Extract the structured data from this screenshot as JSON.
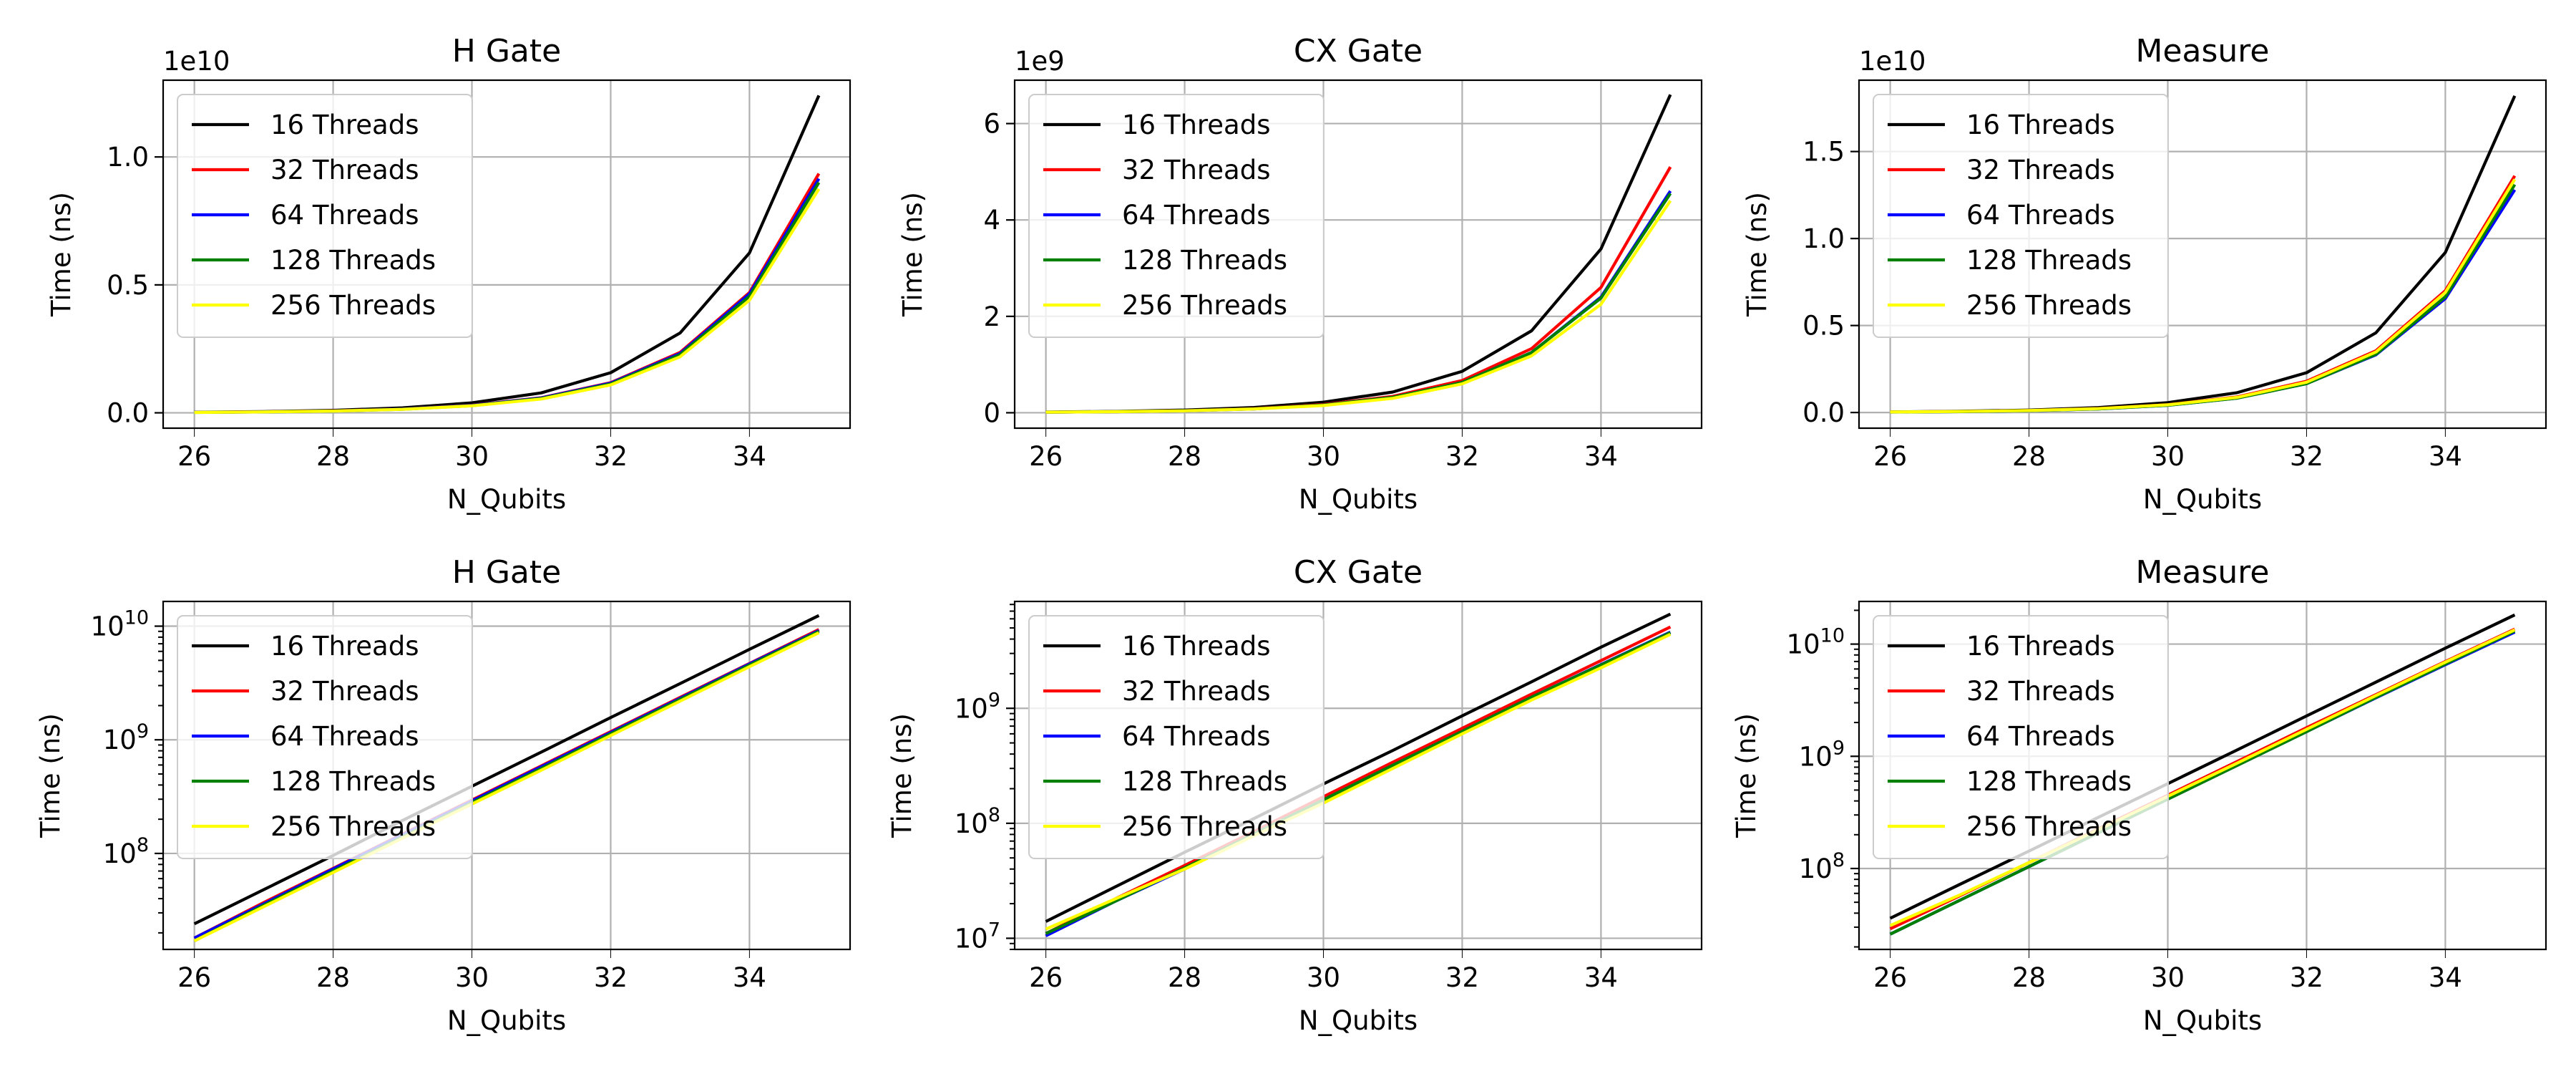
{
  "chart_data": [
    {
      "type": "line",
      "title": "H Gate",
      "xlabel": "N_Qubits",
      "ylabel": "Time (ns)",
      "yscale": "linear",
      "offset_label": "1e10",
      "x": [
        26,
        27,
        28,
        29,
        30,
        31,
        32,
        33,
        34,
        35
      ],
      "xlim": [
        25.55,
        35.45
      ],
      "ylim": [
        -0.06,
        1.3
      ],
      "xticks": [
        26,
        28,
        30,
        32,
        34
      ],
      "xtick_labels": [
        "26",
        "28",
        "30",
        "32",
        "34"
      ],
      "yticks": [
        0.0,
        0.5,
        1.0
      ],
      "ytick_labels": [
        "0.0",
        "0.5",
        "1.0"
      ],
      "grid": true,
      "legend_loc": "upper left",
      "series": [
        {
          "name": "16 Threads",
          "color": "#000000",
          "values": [
            0.0024,
            0.0048,
            0.0096,
            0.0195,
            0.039,
            0.078,
            0.157,
            0.312,
            0.625,
            1.24
          ]
        },
        {
          "name": "32 Threads",
          "color": "#ff0000",
          "values": [
            0.0018,
            0.0037,
            0.0074,
            0.0148,
            0.0295,
            0.059,
            0.118,
            0.236,
            0.47,
            0.935
          ]
        },
        {
          "name": "64 Threads",
          "color": "#0000ff",
          "values": [
            0.0018,
            0.0036,
            0.0073,
            0.0146,
            0.029,
            0.058,
            0.116,
            0.232,
            0.465,
            0.915
          ]
        },
        {
          "name": "128 Threads",
          "color": "#008000",
          "values": [
            0.0017,
            0.0035,
            0.007,
            0.014,
            0.028,
            0.056,
            0.113,
            0.227,
            0.455,
            0.9
          ]
        },
        {
          "name": "256 Threads",
          "color": "#ffff00",
          "values": [
            0.0017,
            0.0034,
            0.0068,
            0.0136,
            0.0272,
            0.054,
            0.109,
            0.219,
            0.44,
            0.875
          ]
        }
      ]
    },
    {
      "type": "line",
      "title": "CX Gate",
      "xlabel": "N_Qubits",
      "ylabel": "Time (ns)",
      "yscale": "linear",
      "offset_label": "1e9",
      "x": [
        26,
        27,
        28,
        29,
        30,
        31,
        32,
        33,
        34,
        35
      ],
      "xlim": [
        25.55,
        35.45
      ],
      "ylim": [
        -0.32,
        6.9
      ],
      "xticks": [
        26,
        28,
        30,
        32,
        34
      ],
      "xtick_labels": [
        "26",
        "28",
        "30",
        "32",
        "34"
      ],
      "yticks": [
        0,
        2,
        4,
        6
      ],
      "ytick_labels": [
        "0",
        "2",
        "4",
        "6"
      ],
      "grid": true,
      "legend_loc": "upper left",
      "series": [
        {
          "name": "16 Threads",
          "color": "#000000",
          "values": [
            0.014,
            0.028,
            0.056,
            0.11,
            0.22,
            0.43,
            0.86,
            1.7,
            3.4,
            6.6
          ]
        },
        {
          "name": "32 Threads",
          "color": "#ff0000",
          "values": [
            0.011,
            0.022,
            0.043,
            0.085,
            0.17,
            0.34,
            0.67,
            1.33,
            2.6,
            5.1
          ]
        },
        {
          "name": "64 Threads",
          "color": "#0000ff",
          "values": [
            0.0105,
            0.021,
            0.04,
            0.08,
            0.16,
            0.32,
            0.63,
            1.25,
            2.4,
            4.6
          ]
        },
        {
          "name": "128 Threads",
          "color": "#008000",
          "values": [
            0.011,
            0.021,
            0.041,
            0.081,
            0.16,
            0.32,
            0.63,
            1.25,
            2.38,
            4.55
          ]
        },
        {
          "name": "256 Threads",
          "color": "#ffff00",
          "values": [
            0.012,
            0.022,
            0.04,
            0.078,
            0.15,
            0.3,
            0.6,
            1.18,
            2.25,
            4.4
          ]
        }
      ]
    },
    {
      "type": "line",
      "title": "Measure",
      "xlabel": "N_Qubits",
      "ylabel": "Time (ns)",
      "yscale": "linear",
      "offset_label": "1e10",
      "x": [
        26,
        27,
        28,
        29,
        30,
        31,
        32,
        33,
        34,
        35
      ],
      "xlim": [
        25.55,
        35.45
      ],
      "ylim": [
        -0.09,
        1.91
      ],
      "xticks": [
        26,
        28,
        30,
        32,
        34
      ],
      "xtick_labels": [
        "26",
        "28",
        "30",
        "32",
        "34"
      ],
      "yticks": [
        0.0,
        0.5,
        1.0,
        1.5
      ],
      "ytick_labels": [
        "0.0",
        "0.5",
        "1.0",
        "1.5"
      ],
      "grid": true,
      "legend_loc": "upper left",
      "series": [
        {
          "name": "16 Threads",
          "color": "#000000",
          "values": [
            0.0036,
            0.0072,
            0.0143,
            0.0286,
            0.057,
            0.114,
            0.229,
            0.458,
            0.92,
            1.82
          ]
        },
        {
          "name": "32 Threads",
          "color": "#ff0000",
          "values": [
            0.0029,
            0.0057,
            0.0113,
            0.0226,
            0.045,
            0.09,
            0.18,
            0.355,
            0.7,
            1.36
          ]
        },
        {
          "name": "64 Threads",
          "color": "#0000ff",
          "values": [
            0.0026,
            0.0052,
            0.0104,
            0.0208,
            0.0415,
            0.083,
            0.166,
            0.332,
            0.655,
            1.28
          ]
        },
        {
          "name": "128 Threads",
          "color": "#008000",
          "values": [
            0.0026,
            0.0052,
            0.0104,
            0.0208,
            0.0415,
            0.083,
            0.166,
            0.335,
            0.665,
            1.31
          ]
        },
        {
          "name": "256 Threads",
          "color": "#ffff00",
          "values": [
            0.0031,
            0.0058,
            0.0113,
            0.0222,
            0.044,
            0.087,
            0.174,
            0.348,
            0.69,
            1.34
          ]
        }
      ]
    },
    {
      "type": "line",
      "title": "H Gate",
      "xlabel": "N_Qubits",
      "ylabel": "Time (ns)",
      "yscale": "log",
      "x": [
        26,
        27,
        28,
        29,
        30,
        31,
        32,
        33,
        34,
        35
      ],
      "xlim": [
        25.55,
        35.45
      ],
      "ylim": [
        14300000,
        16500000000
      ],
      "xticks": [
        26,
        28,
        30,
        32,
        34
      ],
      "xtick_labels": [
        "26",
        "28",
        "30",
        "32",
        "34"
      ],
      "ytick_exponents": [
        8,
        9,
        10
      ],
      "grid": true,
      "legend_loc": "upper left",
      "series": [
        {
          "name": "16 Threads",
          "color": "#000000",
          "values": [
            24000000,
            48000000,
            96000000,
            195000000,
            390000000,
            780000000,
            1570000000,
            3120000000,
            6250000000,
            12400000000
          ]
        },
        {
          "name": "32 Threads",
          "color": "#ff0000",
          "values": [
            18000000,
            37000000,
            74000000,
            148000000,
            295000000,
            590000000,
            1180000000,
            2360000000,
            4700000000,
            9350000000
          ]
        },
        {
          "name": "64 Threads",
          "color": "#0000ff",
          "values": [
            18000000,
            36000000,
            73000000,
            146000000,
            290000000,
            580000000,
            1160000000,
            2320000000,
            4650000000,
            9150000000
          ]
        },
        {
          "name": "128 Threads",
          "color": "#008000",
          "values": [
            17000000,
            35000000,
            70000000,
            140000000,
            280000000,
            560000000,
            1130000000,
            2270000000,
            4550000000,
            9000000000
          ]
        },
        {
          "name": "256 Threads",
          "color": "#ffff00",
          "values": [
            17000000,
            34000000,
            68000000,
            136000000,
            272000000,
            540000000,
            1090000000,
            2190000000,
            4400000000,
            8750000000
          ]
        }
      ]
    },
    {
      "type": "line",
      "title": "CX Gate",
      "xlabel": "N_Qubits",
      "ylabel": "Time (ns)",
      "yscale": "log",
      "x": [
        26,
        27,
        28,
        29,
        30,
        31,
        32,
        33,
        34,
        35
      ],
      "xlim": [
        25.55,
        35.45
      ],
      "ylim": [
        8000000,
        8500000000
      ],
      "xticks": [
        26,
        28,
        30,
        32,
        34
      ],
      "xtick_labels": [
        "26",
        "28",
        "30",
        "32",
        "34"
      ],
      "ytick_exponents": [
        7,
        8,
        9
      ],
      "grid": true,
      "legend_loc": "upper left",
      "series": [
        {
          "name": "16 Threads",
          "color": "#000000",
          "values": [
            14000000,
            28000000,
            56000000,
            110000000,
            220000000,
            430000000,
            860000000,
            1700000000,
            3400000000,
            6600000000
          ]
        },
        {
          "name": "32 Threads",
          "color": "#ff0000",
          "values": [
            11000000,
            22000000,
            43000000,
            85000000,
            170000000,
            340000000,
            670000000,
            1330000000,
            2600000000,
            5100000000
          ]
        },
        {
          "name": "64 Threads",
          "color": "#0000ff",
          "values": [
            10500000,
            21000000,
            40000000,
            80000000,
            160000000,
            320000000,
            630000000,
            1250000000,
            2400000000,
            4600000000
          ]
        },
        {
          "name": "128 Threads",
          "color": "#008000",
          "values": [
            11000000,
            21000000,
            41000000,
            81000000,
            160000000,
            320000000,
            630000000,
            1250000000,
            2380000000,
            4550000000
          ]
        },
        {
          "name": "256 Threads",
          "color": "#ffff00",
          "values": [
            12000000,
            22000000,
            40000000,
            78000000,
            150000000,
            300000000,
            600000000,
            1180000000,
            2250000000,
            4400000000
          ]
        }
      ]
    },
    {
      "type": "line",
      "title": "Measure",
      "xlabel": "N_Qubits",
      "ylabel": "Time (ns)",
      "yscale": "log",
      "x": [
        26,
        27,
        28,
        29,
        30,
        31,
        32,
        33,
        34,
        35
      ],
      "xlim": [
        25.55,
        35.45
      ],
      "ylim": [
        19000000,
        24000000000
      ],
      "xticks": [
        26,
        28,
        30,
        32,
        34
      ],
      "xtick_labels": [
        "26",
        "28",
        "30",
        "32",
        "34"
      ],
      "ytick_exponents": [
        8,
        9,
        10
      ],
      "grid": true,
      "legend_loc": "upper left",
      "series": [
        {
          "name": "16 Threads",
          "color": "#000000",
          "values": [
            36000000,
            72000000,
            143000000,
            286000000,
            570000000,
            1140000000,
            2290000000,
            4580000000,
            9200000000,
            18200000000
          ]
        },
        {
          "name": "32 Threads",
          "color": "#ff0000",
          "values": [
            29000000,
            57000000,
            113000000,
            226000000,
            450000000,
            900000000,
            1800000000,
            3550000000,
            7000000000,
            13600000000
          ]
        },
        {
          "name": "64 Threads",
          "color": "#0000ff",
          "values": [
            26000000,
            52000000,
            104000000,
            208000000,
            415000000,
            830000000,
            1660000000,
            3320000000,
            6550000000,
            12800000000
          ]
        },
        {
          "name": "128 Threads",
          "color": "#008000",
          "values": [
            26000000,
            52000000,
            104000000,
            208000000,
            415000000,
            830000000,
            1660000000,
            3350000000,
            6650000000,
            13100000000
          ]
        },
        {
          "name": "256 Threads",
          "color": "#ffff00",
          "values": [
            31000000,
            58000000,
            113000000,
            222000000,
            440000000,
            870000000,
            1740000000,
            3480000000,
            6900000000,
            13400000000
          ]
        }
      ]
    }
  ]
}
